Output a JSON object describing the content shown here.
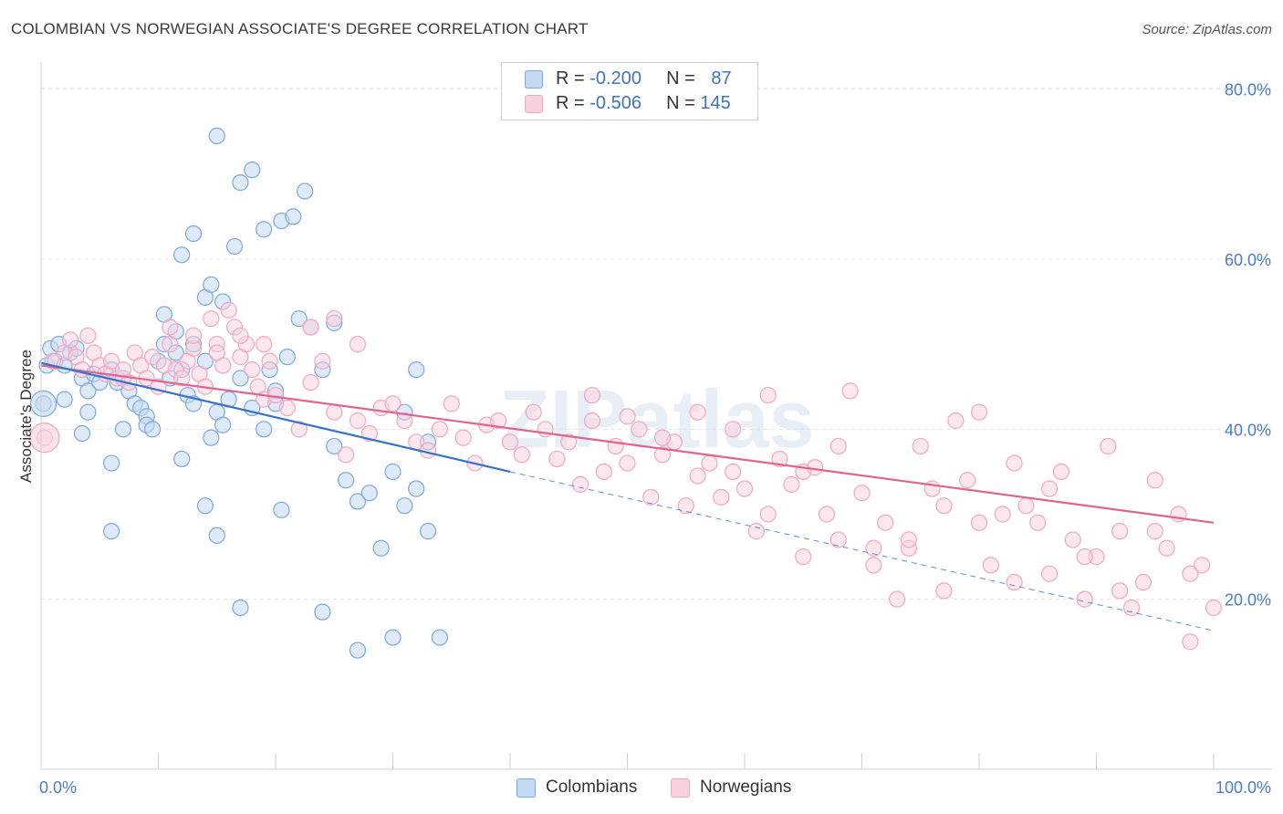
{
  "header": {
    "title": "COLOMBIAN VS NORWEGIAN ASSOCIATE'S DEGREE CORRELATION CHART",
    "source": "Source: ZipAtlas.com"
  },
  "legend": {
    "blue": {
      "r_label": "R = ",
      "r_value": "-0.200",
      "n_label": "N = ",
      "n_value": "87"
    },
    "pink": {
      "r_label": "R = ",
      "r_value": "-0.506",
      "n_label": "N = ",
      "n_value": "145"
    }
  },
  "series_labels": {
    "colombians": "Colombians",
    "norwegians": "Norwegians"
  },
  "colors": {
    "blue": "#7aa8e0",
    "blue_line": "#3572cc",
    "pink": "#f2a6bf",
    "pink_line": "#e0648e",
    "axis_text": "#4a7cc9"
  },
  "chart_data": {
    "type": "scatter",
    "title": "COLOMBIAN VS NORWEGIAN ASSOCIATE'S DEGREE CORRELATION CHART",
    "xlabel": "",
    "ylabel": "Associate's Degree",
    "x_tick_labels": [
      "0.0%",
      "100.0%"
    ],
    "y_tick_labels": [
      "20.0%",
      "40.0%",
      "60.0%",
      "80.0%"
    ],
    "y_ticks": [
      20,
      40,
      60,
      80
    ],
    "xlim": [
      0,
      100
    ],
    "ylim": [
      0,
      82
    ],
    "watermark": "ZIPatlas",
    "series": [
      {
        "name": "Colombians",
        "R": -0.2,
        "N": 87,
        "trend": {
          "x": [
            0,
            40
          ],
          "y": [
            47.8,
            35.0
          ],
          "dashed_extension_x": [
            40,
            100
          ],
          "dashed_extension_y": [
            35.0,
            16.3
          ]
        },
        "points": [
          [
            0.2,
            43
          ],
          [
            0.5,
            47.5
          ],
          [
            0.8,
            49.5
          ],
          [
            1.2,
            48
          ],
          [
            1.5,
            50
          ],
          [
            2,
            47.5
          ],
          [
            2.5,
            49
          ],
          [
            3,
            49.5
          ],
          [
            3.5,
            46
          ],
          [
            2,
            43.5
          ],
          [
            4,
            44.5
          ],
          [
            4.5,
            46.5
          ],
          [
            5,
            45.5
          ],
          [
            4,
            42
          ],
          [
            3.5,
            39.5
          ],
          [
            6,
            47
          ],
          [
            6.5,
            45.5
          ],
          [
            7,
            46
          ],
          [
            7.5,
            44.5
          ],
          [
            8,
            43
          ],
          [
            8.5,
            42.5
          ],
          [
            7,
            40
          ],
          [
            9,
            41.5
          ],
          [
            10,
            48
          ],
          [
            10.5,
            50
          ],
          [
            11,
            46
          ],
          [
            11.5,
            49
          ],
          [
            12,
            47
          ],
          [
            12.5,
            44
          ],
          [
            13,
            43
          ],
          [
            14,
            48
          ],
          [
            14.5,
            39
          ],
          [
            15,
            42
          ],
          [
            15.5,
            40.5
          ],
          [
            16,
            43.5
          ],
          [
            17,
            46
          ],
          [
            18,
            42.5
          ],
          [
            19,
            40
          ],
          [
            20,
            44.5
          ],
          [
            21,
            48.5
          ],
          [
            22,
            53
          ],
          [
            23,
            52
          ],
          [
            24,
            47
          ],
          [
            25,
            38
          ],
          [
            26,
            34
          ],
          [
            27,
            31.5
          ],
          [
            28,
            32.5
          ],
          [
            29,
            26
          ],
          [
            30,
            35
          ],
          [
            31,
            31
          ],
          [
            32,
            33
          ],
          [
            33,
            28
          ],
          [
            9,
            40.5
          ],
          [
            9.5,
            40
          ],
          [
            6,
            36
          ],
          [
            12,
            36.5
          ],
          [
            10.5,
            53.5
          ],
          [
            11.5,
            51.5
          ],
          [
            13,
            50
          ],
          [
            14,
            55.5
          ],
          [
            14.5,
            57
          ],
          [
            15.5,
            55
          ],
          [
            16.5,
            61.5
          ],
          [
            17,
            69
          ],
          [
            18,
            70.5
          ],
          [
            19,
            63.5
          ],
          [
            20.5,
            64.5
          ],
          [
            21.5,
            65
          ],
          [
            22.5,
            68
          ],
          [
            13,
            63
          ],
          [
            12,
            60.5
          ],
          [
            15,
            74.5
          ],
          [
            19.5,
            47
          ],
          [
            20,
            43
          ],
          [
            25,
            52.5
          ],
          [
            31,
            42
          ],
          [
            32,
            47
          ],
          [
            33,
            38.5
          ],
          [
            14,
            31
          ],
          [
            20.5,
            30.5
          ],
          [
            15,
            27.5
          ],
          [
            6,
            28
          ],
          [
            17,
            19
          ],
          [
            24,
            18.5
          ],
          [
            27,
            14
          ],
          [
            30,
            15.5
          ],
          [
            34,
            15.5
          ]
        ]
      },
      {
        "name": "Norwegians",
        "R": -0.506,
        "N": 145,
        "trend": {
          "x": [
            0,
            100
          ],
          "y": [
            47.5,
            29.0
          ]
        },
        "points": [
          [
            0.3,
            39
          ],
          [
            1,
            48
          ],
          [
            2,
            49
          ],
          [
            2.5,
            50.5
          ],
          [
            3,
            48.5
          ],
          [
            3.5,
            47
          ],
          [
            4,
            51
          ],
          [
            4.5,
            49
          ],
          [
            5,
            47.5
          ],
          [
            5.5,
            46.5
          ],
          [
            6,
            48
          ],
          [
            6.5,
            46
          ],
          [
            7,
            47
          ],
          [
            7.5,
            45.5
          ],
          [
            8,
            49
          ],
          [
            8.5,
            47.5
          ],
          [
            9,
            46
          ],
          [
            9.5,
            48.5
          ],
          [
            10,
            45
          ],
          [
            10.5,
            47.5
          ],
          [
            11,
            50
          ],
          [
            11.5,
            47
          ],
          [
            12,
            46
          ],
          [
            12.5,
            48
          ],
          [
            13,
            49.5
          ],
          [
            13.5,
            46.5
          ],
          [
            14,
            45
          ],
          [
            14.5,
            53
          ],
          [
            15,
            50
          ],
          [
            15.5,
            47.5
          ],
          [
            16,
            54
          ],
          [
            16.5,
            52
          ],
          [
            17,
            48.5
          ],
          [
            17.5,
            50
          ],
          [
            18,
            47
          ],
          [
            18.5,
            45
          ],
          [
            19,
            43.5
          ],
          [
            19.5,
            48
          ],
          [
            20,
            44
          ],
          [
            21,
            42.5
          ],
          [
            22,
            40
          ],
          [
            23,
            45.5
          ],
          [
            24,
            48
          ],
          [
            25,
            42
          ],
          [
            26,
            37
          ],
          [
            27,
            41
          ],
          [
            28,
            39.5
          ],
          [
            29,
            42.5
          ],
          [
            30,
            43
          ],
          [
            31,
            41
          ],
          [
            32,
            38.5
          ],
          [
            33,
            37.5
          ],
          [
            34,
            40
          ],
          [
            35,
            43
          ],
          [
            36,
            39
          ],
          [
            37,
            36
          ],
          [
            38,
            40.5
          ],
          [
            39,
            41
          ],
          [
            40,
            38.5
          ],
          [
            41,
            37
          ],
          [
            42,
            42
          ],
          [
            43,
            40
          ],
          [
            44,
            36.5
          ],
          [
            45,
            38.5
          ],
          [
            46,
            33.5
          ],
          [
            47,
            41
          ],
          [
            48,
            35
          ],
          [
            49,
            38
          ],
          [
            50,
            36
          ],
          [
            51,
            40
          ],
          [
            52,
            32
          ],
          [
            53,
            37
          ],
          [
            54,
            38.5
          ],
          [
            55,
            31
          ],
          [
            56,
            34.5
          ],
          [
            57,
            36
          ],
          [
            58,
            32
          ],
          [
            59,
            35
          ],
          [
            60,
            33
          ],
          [
            61,
            28
          ],
          [
            62,
            30
          ],
          [
            63,
            36.5
          ],
          [
            64,
            33.5
          ],
          [
            65,
            25
          ],
          [
            66,
            35.5
          ],
          [
            67,
            30
          ],
          [
            68,
            27
          ],
          [
            69,
            44.5
          ],
          [
            70,
            32.5
          ],
          [
            71,
            26
          ],
          [
            72,
            29
          ],
          [
            73,
            20
          ],
          [
            74,
            26
          ],
          [
            75,
            38
          ],
          [
            76,
            33
          ],
          [
            77,
            21
          ],
          [
            78,
            41
          ],
          [
            79,
            34
          ],
          [
            80,
            42
          ],
          [
            81,
            24
          ],
          [
            82,
            30
          ],
          [
            83,
            22
          ],
          [
            84,
            31
          ],
          [
            85,
            29
          ],
          [
            86,
            23
          ],
          [
            87,
            35
          ],
          [
            88,
            27
          ],
          [
            89,
            20
          ],
          [
            90,
            25
          ],
          [
            91,
            38
          ],
          [
            92,
            28
          ],
          [
            93,
            19
          ],
          [
            94,
            22
          ],
          [
            95,
            34
          ],
          [
            96,
            26
          ],
          [
            97,
            30
          ],
          [
            98,
            15
          ],
          [
            99,
            24
          ],
          [
            100,
            19
          ],
          [
            47,
            44
          ],
          [
            50,
            41.5
          ],
          [
            53,
            39
          ],
          [
            56,
            42
          ],
          [
            59,
            40
          ],
          [
            62,
            44
          ],
          [
            65,
            35
          ],
          [
            68,
            38
          ],
          [
            71,
            24
          ],
          [
            74,
            27
          ],
          [
            77,
            31
          ],
          [
            80,
            29
          ],
          [
            83,
            36
          ],
          [
            86,
            33
          ],
          [
            89,
            25
          ],
          [
            92,
            21
          ],
          [
            95,
            28
          ],
          [
            98,
            23
          ],
          [
            11,
            52
          ],
          [
            13,
            51
          ],
          [
            15,
            49
          ],
          [
            17,
            51
          ],
          [
            19,
            50
          ],
          [
            23,
            52
          ],
          [
            25,
            53
          ],
          [
            27,
            50
          ]
        ]
      }
    ]
  }
}
